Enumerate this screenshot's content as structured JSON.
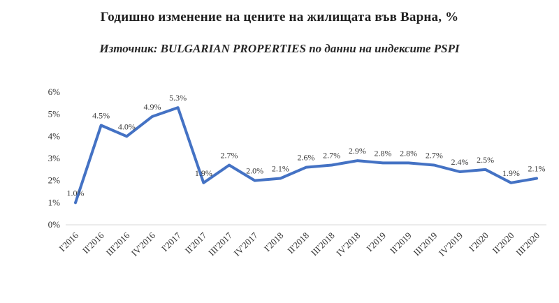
{
  "title": "Годишно изменение на цените на жилищата във Варна, %",
  "subtitle": "Източник: BULGARIAN PROPERTIES по данни на индексите PSPI",
  "chart_data": {
    "type": "line",
    "categories": [
      "I'2016",
      "II'2016",
      "III'2016",
      "IV'2016",
      "I'2017",
      "II'2017",
      "III'2017",
      "IV'2017",
      "I'2018",
      "II'2018",
      "III'2018",
      "IV'2018",
      "I'2019",
      "II'2019",
      "III'2019",
      "IV'2019",
      "I'2020",
      "II'2020",
      "III'2020"
    ],
    "values": [
      1.0,
      4.5,
      4.0,
      4.9,
      5.3,
      1.9,
      2.7,
      2.0,
      2.1,
      2.6,
      2.7,
      2.9,
      2.8,
      2.8,
      2.7,
      2.4,
      2.5,
      1.9,
      2.1
    ],
    "data_labels": [
      "1.0%",
      "4.5%",
      "4.0%",
      "4.9%",
      "5.3%",
      "1.9%",
      "2.7%",
      "2.0%",
      "2.1%",
      "2.6%",
      "2.7%",
      "2.9%",
      "2.8%",
      "2.8%",
      "2.7%",
      "2.4%",
      "2.5%",
      "1.9%",
      "2.1%"
    ],
    "ylim": [
      0,
      6
    ],
    "yticks": [
      "0%",
      "1%",
      "2%",
      "3%",
      "4%",
      "5%",
      "6%"
    ],
    "line_color": "#4472C4",
    "axis_color": "#d9d9d9",
    "grid": false,
    "legend": "none"
  }
}
